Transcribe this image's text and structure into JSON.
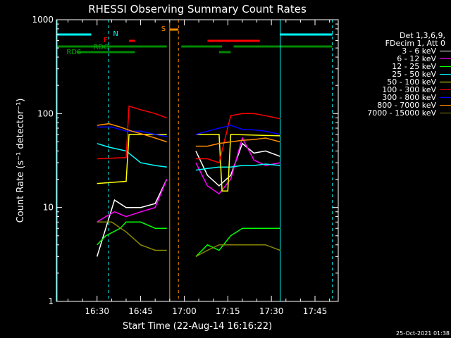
{
  "chart_data": {
    "type": "line",
    "title": "RHESSI Observing Summary Count Rates",
    "xlabel": "Start Time (22-Aug-14 16:16:22)",
    "ylabel": "Count Rate (s⁻¹ detector⁻¹)",
    "x_tick_labels": [
      "16:30",
      "16:45",
      "17:00",
      "17:15",
      "17:30",
      "17:45"
    ],
    "y_tick_labels": [
      "1",
      "10",
      "100",
      "1000"
    ],
    "x_range": [
      "16:16",
      "17:53"
    ],
    "y_range": [
      1,
      1000
    ],
    "y_scale": "log",
    "legend_header": [
      "Det 1,3,6,9,",
      "FDecim 1, Att 0"
    ],
    "colors": {
      "background": "#000000",
      "axes": "#ffffff",
      "night": "#00ffff",
      "saa": "#ff8c00",
      "flare": "#ff0000",
      "decimation": "#008800"
    },
    "series": [
      {
        "name": "3 - 6 keV",
        "color": "#ffffff",
        "x": [
          "16:30",
          "16:33",
          "16:36",
          "16:40",
          "16:45",
          "16:50",
          "16:54",
          "17:04",
          "17:08",
          "17:12",
          "17:16",
          "17:20",
          "17:24",
          "17:28",
          "17:33"
        ],
        "y": [
          3,
          6,
          12,
          10,
          10,
          11,
          20,
          40,
          22,
          17,
          22,
          48,
          38,
          40,
          35
        ]
      },
      {
        "name": "6 - 12 keV",
        "color": "#ff00ff",
        "x": [
          "16:30",
          "16:33",
          "16:36",
          "16:40",
          "16:45",
          "16:50",
          "16:54",
          "17:04",
          "17:08",
          "17:12",
          "17:16",
          "17:20",
          "17:24",
          "17:28",
          "17:33"
        ],
        "y": [
          7,
          8,
          9,
          8,
          9,
          10,
          20,
          30,
          17,
          14,
          20,
          55,
          32,
          28,
          30
        ]
      },
      {
        "name": "12 - 25 keV",
        "color": "#00ff00",
        "x": [
          "16:30",
          "16:33",
          "16:38",
          "16:40",
          "16:45",
          "16:50",
          "16:54",
          "17:04",
          "17:08",
          "17:12",
          "17:16",
          "17:20",
          "17:24",
          "17:28",
          "17:33"
        ],
        "y": [
          4,
          5,
          6,
          7,
          7,
          6,
          6,
          3,
          4,
          3.5,
          5,
          6,
          6,
          6,
          6
        ]
      },
      {
        "name": "25 - 50 keV",
        "color": "#00ffff",
        "x": [
          "16:30",
          "16:34",
          "16:40",
          "16:45",
          "16:50",
          "16:54",
          "17:04",
          "17:08",
          "17:12",
          "17:16",
          "17:20",
          "17:24",
          "17:28",
          "17:33"
        ],
        "y": [
          48,
          44,
          40,
          30,
          28,
          27,
          25,
          26,
          27,
          27,
          28,
          28,
          29,
          28
        ]
      },
      {
        "name": "50 - 100 keV",
        "color": "#ffff00",
        "x": [
          "16:30",
          "16:40",
          "16:41",
          "16:54",
          "17:04",
          "17:12",
          "17:13",
          "17:15",
          "17:16",
          "17:33"
        ],
        "y": [
          18,
          19,
          60,
          60,
          60,
          60,
          15,
          15,
          60,
          58
        ]
      },
      {
        "name": "100 - 300 keV",
        "color": "#ff0000",
        "x": [
          "16:30",
          "16:40",
          "16:41",
          "16:45",
          "16:50",
          "16:54",
          "17:04",
          "17:08",
          "17:12",
          "17:16",
          "17:20",
          "17:24",
          "17:28",
          "17:33"
        ],
        "y": [
          33,
          34,
          120,
          110,
          100,
          90,
          33,
          33,
          30,
          95,
          100,
          100,
          95,
          88
        ]
      },
      {
        "name": "300 - 800 keV",
        "color": "#0000ff",
        "x": [
          "16:30",
          "16:35",
          "16:40",
          "16:45",
          "16:50",
          "16:54",
          "17:04",
          "17:08",
          "17:12",
          "17:16",
          "17:20",
          "17:24",
          "17:28",
          "17:33"
        ],
        "y": [
          72,
          72,
          65,
          65,
          60,
          57,
          60,
          65,
          70,
          75,
          68,
          67,
          65,
          60
        ]
      },
      {
        "name": "800 - 7000 keV",
        "color": "#ff8c00",
        "x": [
          "16:30",
          "16:34",
          "16:38",
          "16:42",
          "16:46",
          "16:50",
          "16:54",
          "17:04",
          "17:08",
          "17:12",
          "17:16",
          "17:20",
          "17:24",
          "17:28",
          "17:33"
        ],
        "y": [
          75,
          78,
          72,
          65,
          60,
          55,
          50,
          45,
          45,
          48,
          50,
          52,
          53,
          55,
          50
        ]
      },
      {
        "name": "7000 - 15000 keV",
        "color": "#888800",
        "x": [
          "16:30",
          "16:35",
          "16:40",
          "16:45",
          "16:50",
          "16:54",
          "17:04",
          "17:08",
          "17:12",
          "17:16",
          "17:20",
          "17:24",
          "17:28",
          "17:33"
        ],
        "y": [
          7,
          7,
          5.5,
          4,
          3.5,
          3.5,
          3,
          3.5,
          4,
          4,
          4,
          4,
          4,
          3.5
        ]
      }
    ],
    "flag_labels": [
      {
        "text": "N",
        "color": "#00ffff"
      },
      {
        "text": "F",
        "color": "#ff0000"
      },
      {
        "text": "RDO",
        "color": "#00aa00"
      },
      {
        "text": "RD6",
        "color": "#00aa00"
      },
      {
        "text": "S",
        "color": "#ff8c00"
      }
    ],
    "footer": "25-Oct-2021 01:38"
  }
}
